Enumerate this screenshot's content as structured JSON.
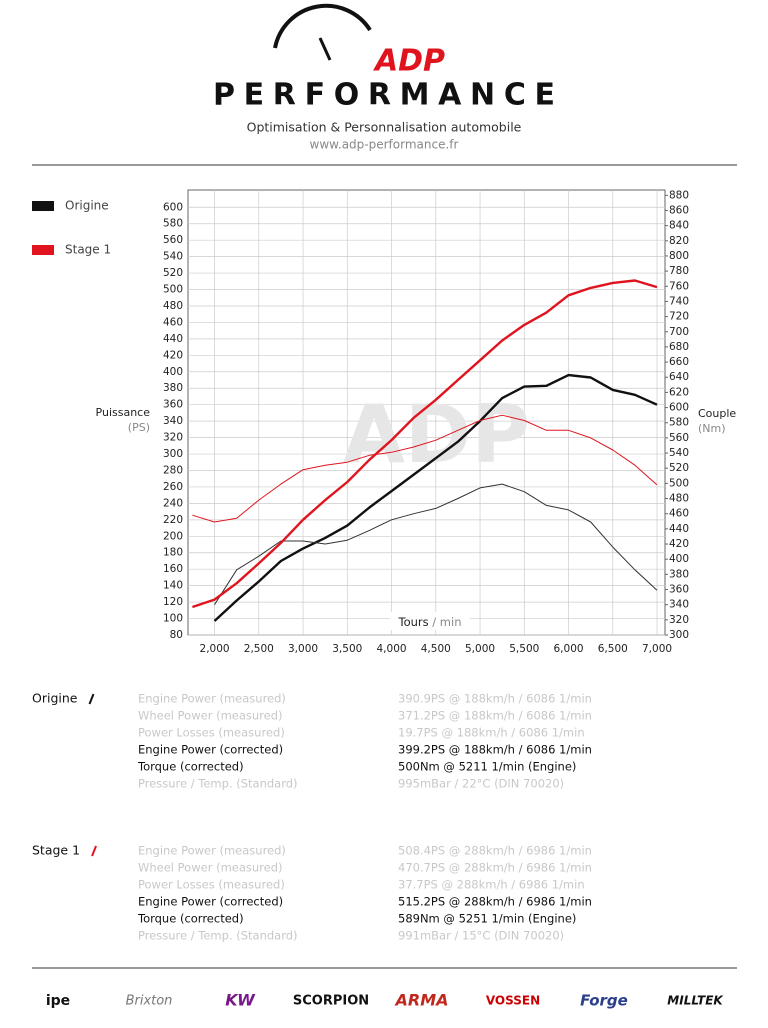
{
  "header": {
    "brand": "ADP",
    "brand_sub": "PERFORMANCE",
    "tagline": "Optimisation & Personnalisation automobile",
    "url": "www.adp-performance.fr"
  },
  "chart_data": {
    "type": "line",
    "watermark": "ADP",
    "x_label": "Tours",
    "x_label_unit": "/ min",
    "y_label": "Puissance",
    "y_unit": "(PS)",
    "y2_label": "Couple",
    "y2_unit": "(Nm)",
    "x": [
      1750,
      2000,
      2250,
      2500,
      2750,
      3000,
      3250,
      3500,
      3750,
      4000,
      4250,
      4500,
      4750,
      5000,
      5250,
      5500,
      5750,
      6000,
      6250,
      6500,
      6750,
      7000
    ],
    "series": [
      {
        "name": "Origine",
        "color": "#111111",
        "width": 2.4,
        "values": [
          null,
          97,
          122,
          145,
          170,
          185,
          198,
          213,
          235,
          255,
          275,
          295,
          315,
          340,
          368,
          382,
          383,
          396,
          393,
          378,
          372,
          360
        ]
      },
      {
        "color": "#333333",
        "width": 1,
        "axis": "y2",
        "values": [
          null,
          340,
          386,
          404,
          424,
          424,
          420,
          425,
          438,
          452,
          460,
          467,
          480,
          494,
          499,
          489,
          471,
          465,
          449,
          416,
          386,
          359
        ]
      },
      {
        "name": "Stage 1",
        "color": "#e0141e",
        "width": 2.4,
        "values": [
          114,
          123,
          143,
          167,
          192,
          220,
          244,
          266,
          293,
          317,
          344,
          366,
          390,
          414,
          438,
          457,
          472,
          493,
          502,
          508,
          511,
          503
        ]
      },
      {
        "color": "#e0141e",
        "width": 1,
        "axis": "y2",
        "values": [
          458,
          449,
          454,
          478,
          499,
          518,
          524,
          528,
          537,
          541,
          548,
          557,
          570,
          583,
          590,
          583,
          570,
          570,
          560,
          544,
          524,
          498
        ]
      }
    ],
    "xlim": [
      1700,
      7090
    ],
    "ylim": [
      80,
      621
    ],
    "y2lim": [
      300,
      887
    ],
    "xticks": [
      {
        "value": 2000,
        "label": "2,000"
      },
      {
        "value": 2500,
        "label": "2,500"
      },
      {
        "value": 3000,
        "label": "3,000"
      },
      {
        "value": 3500,
        "label": "3,500"
      },
      {
        "value": 4000,
        "label": "4,000"
      },
      {
        "value": 4500,
        "label": "4,500"
      },
      {
        "value": 5000,
        "label": "5,000"
      },
      {
        "value": 5500,
        "label": "5,500"
      },
      {
        "value": 6000,
        "label": "6,000"
      },
      {
        "value": 6500,
        "label": "6,500"
      },
      {
        "value": 7000,
        "label": "7,000"
      }
    ],
    "yticks": [
      80,
      100,
      120,
      140,
      160,
      180,
      200,
      220,
      240,
      260,
      280,
      300,
      320,
      340,
      360,
      380,
      400,
      420,
      440,
      460,
      480,
      500,
      520,
      540,
      560,
      580,
      600
    ],
    "y2ticks": [
      300,
      320,
      340,
      360,
      380,
      400,
      420,
      440,
      460,
      480,
      500,
      520,
      540,
      560,
      580,
      600,
      620,
      640,
      660,
      680,
      700,
      720,
      740,
      760,
      780,
      800,
      820,
      840,
      860,
      880
    ],
    "grid": true
  },
  "results": [
    {
      "title": "Origine",
      "color": "#111111",
      "rows": [
        {
          "label": "Engine Power (measured)",
          "value": "390.9PS @ 188km/h / 6086 1/min"
        },
        {
          "label": "Wheel Power (measured)",
          "value": "371.2PS @ 188km/h / 6086 1/min"
        },
        {
          "label": "Power Losses (measured)",
          "value": "19.7PS @ 188km/h / 6086 1/min"
        },
        {
          "label": "Engine Power (corrected)",
          "value": "399.2PS @ 188km/h / 6086 1/min",
          "emphasized": true
        },
        {
          "label": "Torque (corrected)",
          "value": "500Nm @ 5211 1/min (Engine)",
          "emphasized": true
        },
        {
          "label": "Pressure / Temp. (Standard)",
          "value": "995mBar / 22°C   (DIN 70020)"
        }
      ]
    },
    {
      "title": "Stage 1",
      "color": "#e0141e",
      "rows": [
        {
          "label": "Engine Power (measured)",
          "value": "508.4PS @ 288km/h / 6986 1/min"
        },
        {
          "label": "Wheel Power (measured)",
          "value": "470.7PS @ 288km/h / 6986 1/min"
        },
        {
          "label": "Power Losses (measured)",
          "value": "37.7PS @ 288km/h / 6986 1/min"
        },
        {
          "label": "Engine Power (corrected)",
          "value": "515.2PS @ 288km/h / 6986 1/min",
          "emphasized": true
        },
        {
          "label": "Torque (corrected)",
          "value": "589Nm @ 5251 1/min (Engine)",
          "emphasized": true
        },
        {
          "label": "Pressure / Temp. (Standard)",
          "value": "991mBar / 15°C   (DIN 70020)"
        }
      ]
    }
  ],
  "sponsors": [
    "ipe",
    "Brixton",
    "KW",
    "SCORPION",
    "ARMA",
    "VOSSEN",
    "Forge",
    "MILLTEK"
  ]
}
